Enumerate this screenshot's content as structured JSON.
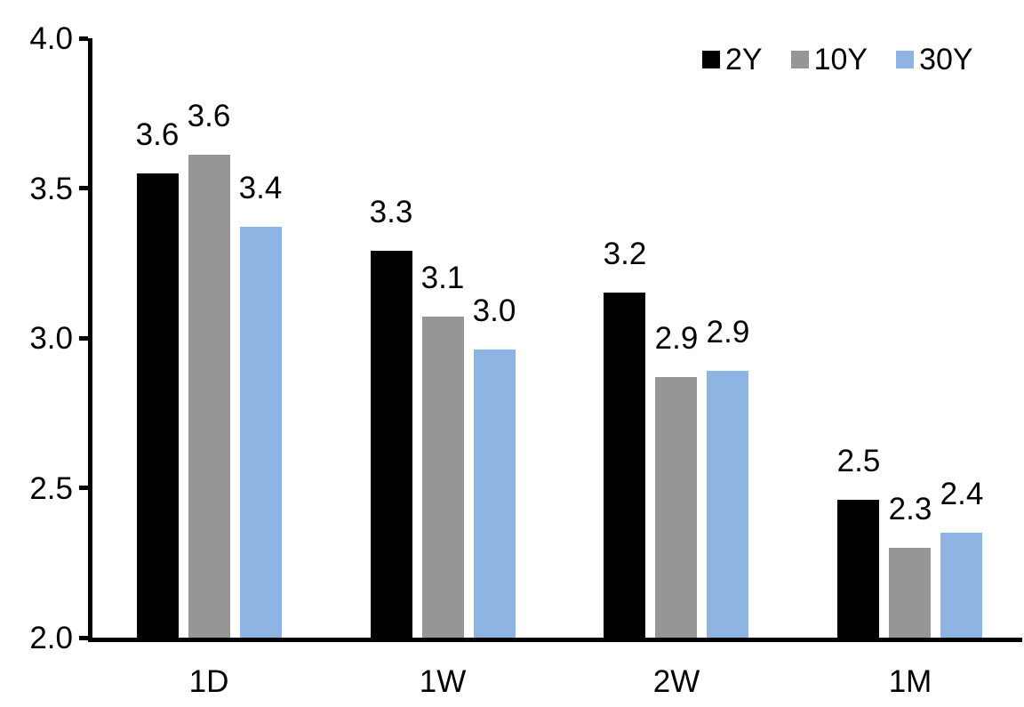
{
  "chart_data": {
    "type": "bar",
    "title": "",
    "categories": [
      "1D",
      "1W",
      "2W",
      "1M"
    ],
    "series": [
      {
        "name": "2Y",
        "color": "#000000",
        "values": [
          3.6,
          3.3,
          3.2,
          2.5
        ],
        "precise_values": [
          3.55,
          3.29,
          3.15,
          2.46
        ],
        "labels": [
          "3.6",
          "3.3",
          "3.2",
          "2.5"
        ]
      },
      {
        "name": "10Y",
        "color": "#969696",
        "values": [
          3.6,
          3.1,
          2.9,
          2.3
        ],
        "precise_values": [
          3.61,
          3.07,
          2.87,
          2.3
        ],
        "labels": [
          "3.6",
          "3.1",
          "2.9",
          "2.3"
        ]
      },
      {
        "name": "30Y",
        "color": "#8EB4E3",
        "values": [
          3.4,
          3.0,
          2.9,
          2.4
        ],
        "precise_values": [
          3.37,
          2.96,
          2.89,
          2.35
        ],
        "labels": [
          "3.4",
          "3.0",
          "2.9",
          "2.4"
        ]
      }
    ],
    "ylim": [
      2.0,
      4.0
    ],
    "yticks": [
      {
        "value": 4.0,
        "label": "4.0"
      },
      {
        "value": 3.5,
        "label": "3.5"
      },
      {
        "value": 3.0,
        "label": "3.0"
      },
      {
        "value": 2.5,
        "label": "2.5"
      },
      {
        "value": 2.0,
        "label": "2.0"
      }
    ],
    "xlabel": "",
    "ylabel": "",
    "grid": false,
    "legend_position": "top-right",
    "background_color": "#FFFFFF",
    "axis_color": "#000000",
    "text_color": "#000000"
  }
}
